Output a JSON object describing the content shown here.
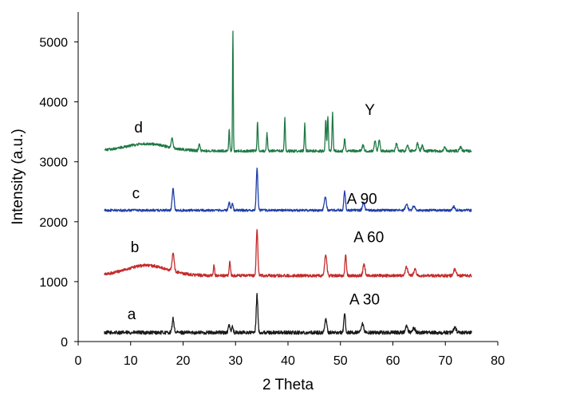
{
  "chart_data": {
    "type": "line",
    "title": "",
    "xlabel": "2 Theta",
    "ylabel": "Intensity (a.u.)",
    "xlim": [
      0,
      80
    ],
    "ylim": [
      0,
      5500
    ],
    "xticks": [
      0,
      10,
      20,
      30,
      40,
      50,
      60,
      70,
      80
    ],
    "yticks": [
      0,
      1000,
      2000,
      3000,
      4000,
      5000
    ],
    "grid": false,
    "legend": "none",
    "series": [
      {
        "name": "a",
        "sample": "A 30",
        "color": "#1a1a1a",
        "baseline": 150,
        "noise": 30,
        "humps": [],
        "peaks": [
          [
            18.1,
            230,
            0.35
          ],
          [
            28.8,
            130,
            0.3
          ],
          [
            29.4,
            110,
            0.3
          ],
          [
            34.1,
            640,
            0.3
          ],
          [
            47.2,
            220,
            0.4
          ],
          [
            50.8,
            320,
            0.3
          ],
          [
            54.2,
            140,
            0.4
          ],
          [
            62.6,
            100,
            0.45
          ],
          [
            64.0,
            80,
            0.45
          ],
          [
            71.8,
            80,
            0.5
          ]
        ]
      },
      {
        "name": "b",
        "sample": "A 60",
        "color": "#c42b2b",
        "baseline": 1100,
        "noise": 25,
        "humps": [
          [
            13,
            170,
            4
          ]
        ],
        "peaks": [
          [
            18.1,
            300,
            0.4
          ],
          [
            25.9,
            180,
            0.2
          ],
          [
            28.9,
            230,
            0.25
          ],
          [
            34.1,
            780,
            0.3
          ],
          [
            47.2,
            360,
            0.4
          ],
          [
            51.0,
            330,
            0.3
          ],
          [
            54.5,
            190,
            0.4
          ],
          [
            62.6,
            140,
            0.45
          ],
          [
            64.2,
            100,
            0.45
          ],
          [
            71.8,
            100,
            0.5
          ]
        ]
      },
      {
        "name": "c",
        "sample": "A 90",
        "color": "#1f3fa8",
        "baseline": 2190,
        "noise": 20,
        "humps": [],
        "peaks": [
          [
            18.1,
            360,
            0.35
          ],
          [
            28.8,
            140,
            0.3
          ],
          [
            29.4,
            110,
            0.3
          ],
          [
            34.1,
            700,
            0.3
          ],
          [
            47.1,
            230,
            0.4
          ],
          [
            50.8,
            330,
            0.3
          ],
          [
            54.4,
            140,
            0.4
          ],
          [
            62.6,
            100,
            0.45
          ],
          [
            64.0,
            70,
            0.45
          ],
          [
            71.6,
            60,
            0.5
          ]
        ]
      },
      {
        "name": "d",
        "sample": "Y",
        "color": "#1f7a45",
        "baseline": 3180,
        "noise": 22,
        "humps": [
          [
            13,
            120,
            4
          ]
        ],
        "peaks": [
          [
            17.9,
            150,
            0.35
          ],
          [
            23.1,
            130,
            0.25
          ],
          [
            28.8,
            350,
            0.2
          ],
          [
            29.5,
            1990,
            0.15
          ],
          [
            34.2,
            480,
            0.2
          ],
          [
            36.0,
            300,
            0.2
          ],
          [
            39.4,
            540,
            0.2
          ],
          [
            43.2,
            450,
            0.2
          ],
          [
            47.2,
            530,
            0.2
          ],
          [
            47.6,
            580,
            0.2
          ],
          [
            48.5,
            630,
            0.2
          ],
          [
            50.8,
            200,
            0.25
          ],
          [
            54.3,
            110,
            0.3
          ],
          [
            56.6,
            170,
            0.3
          ],
          [
            57.4,
            200,
            0.3
          ],
          [
            60.7,
            120,
            0.35
          ],
          [
            62.8,
            90,
            0.35
          ],
          [
            64.7,
            130,
            0.35
          ],
          [
            65.6,
            90,
            0.35
          ],
          [
            69.9,
            60,
            0.4
          ],
          [
            72.9,
            60,
            0.4
          ]
        ]
      }
    ],
    "annotations": [
      {
        "text": "d",
        "x": 11.5,
        "y": 3490
      },
      {
        "text": "c",
        "x": 11.0,
        "y": 2390
      },
      {
        "text": "b",
        "x": 10.8,
        "y": 1490
      },
      {
        "text": "a",
        "x": 10.2,
        "y": 370
      },
      {
        "text": "Y",
        "x": 55.6,
        "y": 3780
      },
      {
        "text": "A 90",
        "x": 54.1,
        "y": 2300
      },
      {
        "text": "A 60",
        "x": 55.4,
        "y": 1660
      },
      {
        "text": "A 30",
        "x": 54.6,
        "y": 620
      }
    ]
  }
}
